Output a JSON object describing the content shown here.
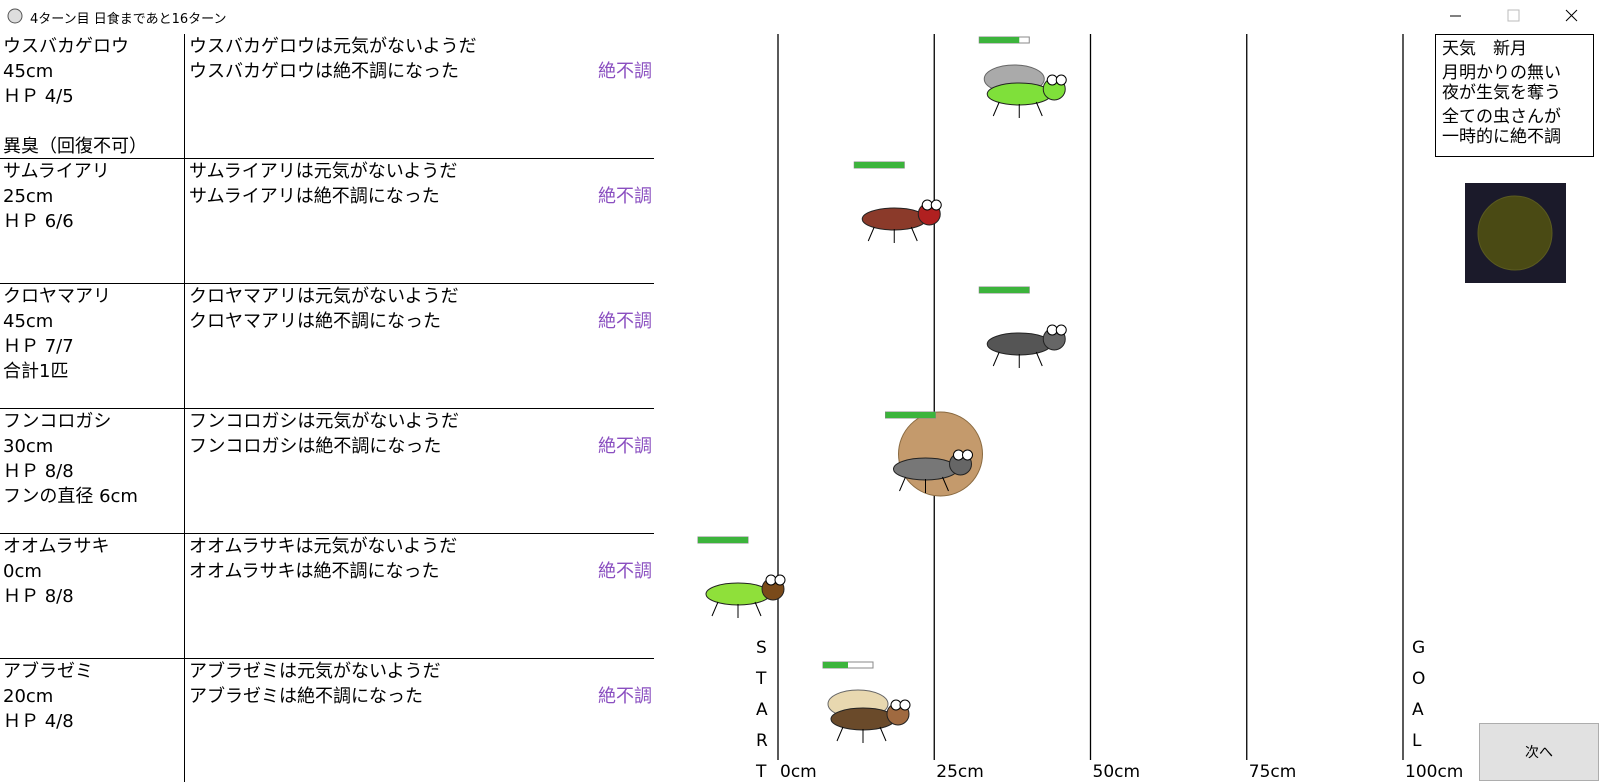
{
  "window": {
    "title": "4ターン目 日食まであと16ターン"
  },
  "racers": [
    {
      "name": "ウスバカゲロウ",
      "position_label": "45cm",
      "position": 45,
      "status": "絶不調",
      "hp_text": "ＨＰ 4/5",
      "hp": 4,
      "hp_max": 5,
      "note": "異臭（回復不可）",
      "messages": [
        "ウスバカゲロウは元気がないようだ",
        "ウスバカゲロウは絶不調になった"
      ]
    },
    {
      "name": "サムライアリ",
      "position_label": "25cm",
      "position": 25,
      "status": "絶不調",
      "hp_text": "ＨＰ 6/6",
      "hp": 6,
      "hp_max": 6,
      "messages": [
        "サムライアリは元気がないようだ",
        "サムライアリは絶不調になった"
      ]
    },
    {
      "name": "クロヤマアリ",
      "position_label": "45cm",
      "position": 45,
      "status": "絶不調",
      "hp_text": "ＨＰ 7/7",
      "hp": 7,
      "hp_max": 7,
      "note": "合計1匹",
      "messages": [
        "クロヤマアリは元気がないようだ",
        "クロヤマアリは絶不調になった"
      ]
    },
    {
      "name": "フンコロガシ",
      "position_label": "30cm",
      "position": 30,
      "status": "絶不調",
      "hp_text": "ＨＰ 8/8",
      "hp": 8,
      "hp_max": 8,
      "note": "フンの直径 6cm",
      "messages": [
        "フンコロガシは元気がないようだ",
        "フンコロガシは絶不調になった"
      ]
    },
    {
      "name": "オオムラサキ",
      "position_label": "0cm",
      "position": 0,
      "status": "絶不調",
      "hp_text": "ＨＰ 8/8",
      "hp": 8,
      "hp_max": 8,
      "messages": [
        "オオムラサキは元気がないようだ",
        "オオムラサキは絶不調になった"
      ]
    },
    {
      "name": "アブラゼミ",
      "position_label": "20cm",
      "position": 20,
      "status": "絶不調",
      "hp_text": "ＨＰ 4/8",
      "hp": 4,
      "hp_max": 8,
      "messages": [
        "アブラゼミは元気がないようだ",
        "アブラゼミは絶不調になった"
      ]
    }
  ],
  "track": {
    "xlim": [
      0,
      100
    ],
    "xticks": [
      {
        "value": 0,
        "label": "0cm"
      },
      {
        "value": 25,
        "label": "25cm"
      },
      {
        "value": 50,
        "label": "50cm"
      },
      {
        "value": 75,
        "label": "75cm"
      },
      {
        "value": 100,
        "label": "100cm"
      }
    ],
    "start_letters": [
      "S",
      "T",
      "A",
      "R",
      "T"
    ],
    "goal_letters": [
      "G",
      "O",
      "A",
      "L"
    ]
  },
  "weather": {
    "title": "天気　新月",
    "effects": [
      [
        "月明かりの無い",
        "夜が生気を奪う"
      ],
      [
        "全ての虫さんが",
        "一時的に絶不調"
      ]
    ]
  },
  "next_button": "次へ"
}
